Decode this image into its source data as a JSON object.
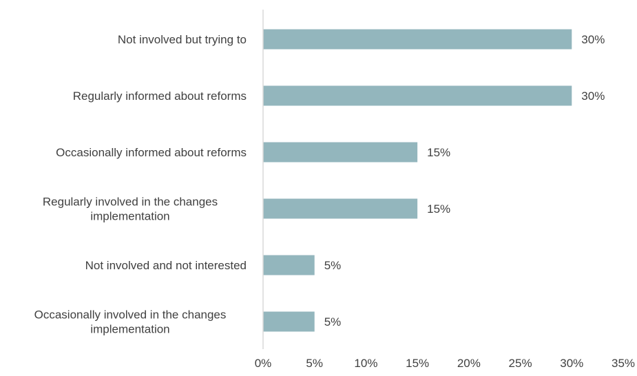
{
  "chart_data": {
    "type": "bar",
    "orientation": "horizontal",
    "categories": [
      "Not involved but trying to",
      "Regularly informed about reforms",
      "Occasionally informed about reforms",
      "Regularly involved in the changes implementation",
      "Not involved and not interested",
      "Occasionally involved in the changes implementation"
    ],
    "category_lines": [
      [
        "Not involved but trying to"
      ],
      [
        "Regularly informed about reforms"
      ],
      [
        "Occasionally informed about reforms"
      ],
      [
        "Regularly involved in the changes",
        "implementation"
      ],
      [
        "Not involved and not interested"
      ],
      [
        "Occasionally involved in the changes",
        "implementation"
      ]
    ],
    "values": [
      30,
      30,
      15,
      15,
      5,
      5
    ],
    "data_labels": [
      "30%",
      "30%",
      "15%",
      "15%",
      "5%",
      "5%"
    ],
    "title": "",
    "xlabel": "",
    "ylabel": "",
    "xlim": [
      0,
      35
    ],
    "ticks": [
      0,
      5,
      10,
      15,
      20,
      25,
      30,
      35
    ],
    "tick_labels": [
      "0%",
      "5%",
      "10%",
      "15%",
      "20%",
      "25%",
      "30%",
      "35%"
    ],
    "grid": false,
    "legend": "none",
    "colors": {
      "bar": "#93b6bd",
      "axis": "#d9d9d9",
      "text": "#404040"
    }
  }
}
